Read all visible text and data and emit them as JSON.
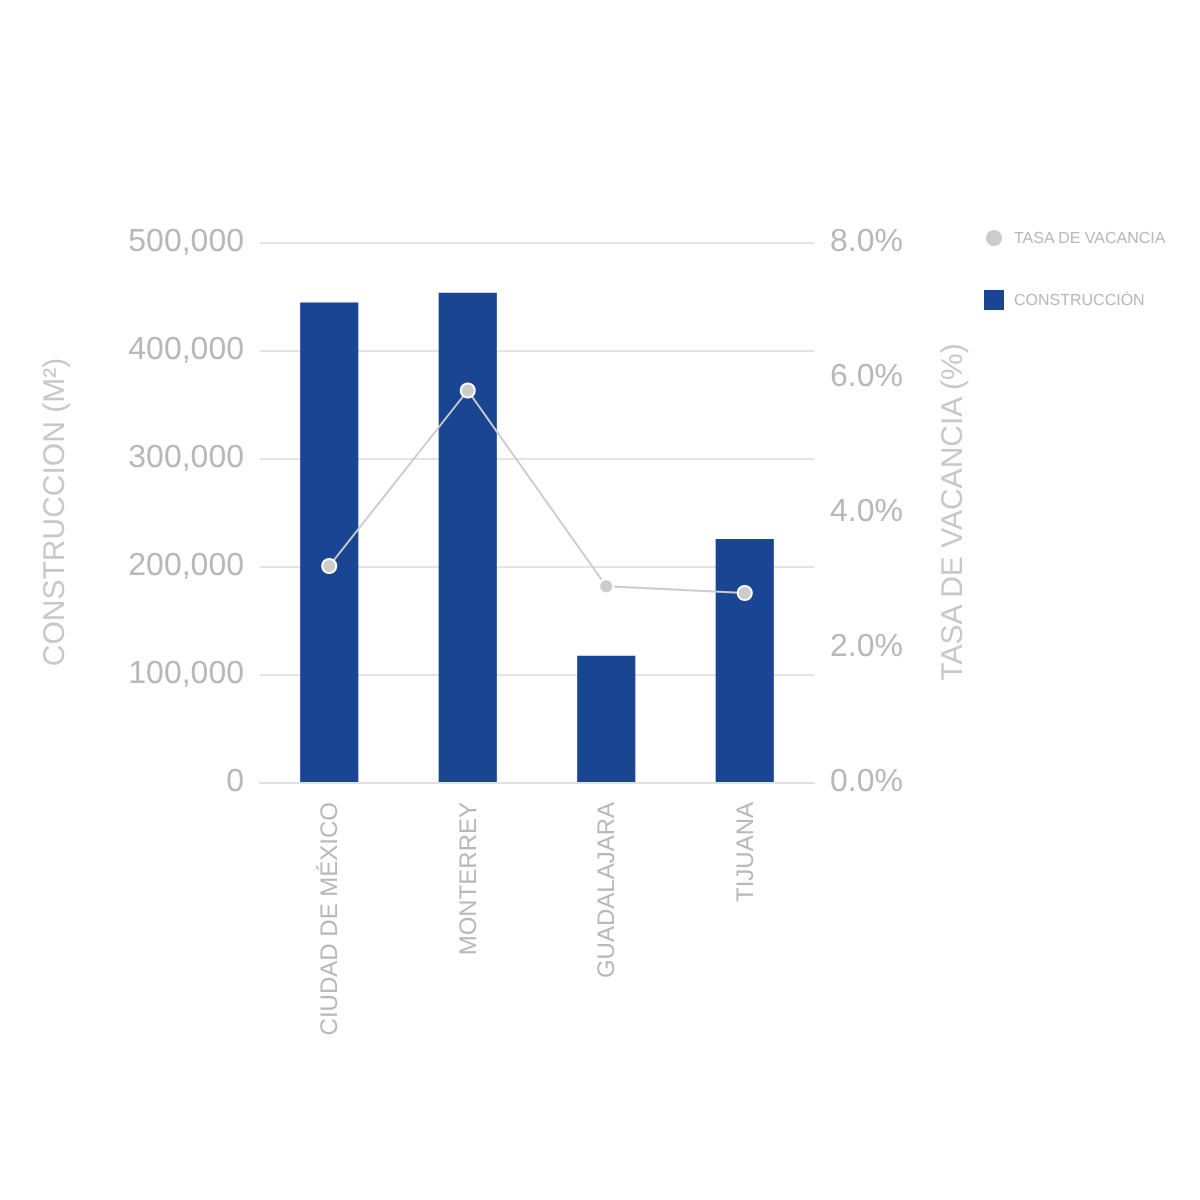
{
  "chart_data": {
    "type": "bar",
    "categories": [
      "CIUDAD DE MÉXICO",
      "MONTERREY",
      "GUADALAJARA",
      "TIJUANA"
    ],
    "ylabel": "CONSTRUCCION (M²)",
    "y2label": "TASA DE VACANCIA (%)",
    "series": [
      {
        "name": "TASA DE VACANCIA",
        "type": "line",
        "axis": "y2",
        "color": "#cccccc",
        "values": [
          3.2,
          5.8,
          2.9,
          2.8
        ]
      },
      {
        "name": "CONSTRUCCIÓN",
        "color": "#1a4592",
        "values": [
          444000,
          453000,
          117000,
          225000
        ]
      }
    ],
    "ylim": [
      0,
      500000
    ],
    "yticks": [
      0,
      {
        "value": 100000,
        "label": "100,000"
      },
      {
        "value": 200000,
        "label": "200,000"
      },
      {
        "value": 300000,
        "label": "300,000"
      },
      {
        "value": 400000,
        "label": "400,000"
      },
      {
        "value": 500000,
        "label": "500,000"
      }
    ],
    "y2lim": [
      0,
      8
    ],
    "y2ticks": [
      {
        "value": 0,
        "label": "0.0%"
      },
      {
        "value": 2,
        "label": "2.0%"
      },
      {
        "value": 4,
        "label": "4.0%"
      },
      {
        "value": 6,
        "label": "6.0%"
      },
      {
        "value": 8,
        "label": "8.0%"
      }
    ],
    "grid": "y",
    "legend": "top right",
    "marker": "circle"
  }
}
